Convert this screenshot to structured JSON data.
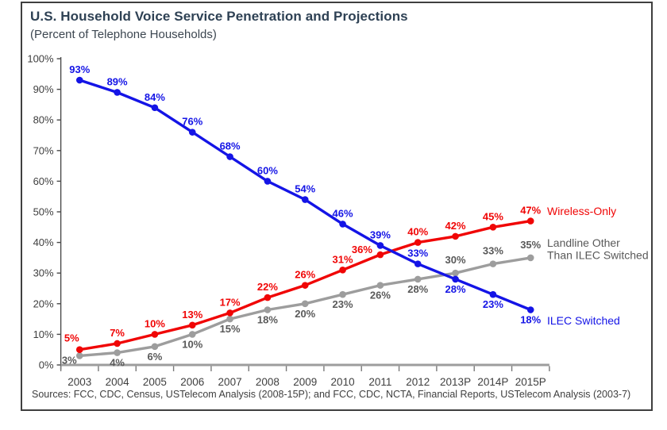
{
  "header": {
    "title": "U.S. Household Voice Service Penetration and Projections",
    "subtitle": "(Percent of Telephone Households)"
  },
  "source_note": "Sources: FCC, CDC, Census, USTelecom Analysis (2008-15P); and FCC, CDC, NCTA, Financial Reports, USTelecom Analysis (2003-7)",
  "colors": {
    "title": "#2e4154",
    "subtitle": "#3c4650",
    "axis_text": "#3f3f3f",
    "frame_border": "#3f3f3f",
    "wireless_red": "#f00505",
    "landline_gray_line": "#9d9d9d",
    "landline_gray_label": "#595959",
    "ilec_blue": "#1414e6"
  },
  "chart_data": {
    "type": "line",
    "title": "U.S. Household Voice Service Penetration and Projections",
    "subtitle": "(Percent of Telephone Households)",
    "categories": [
      "2003",
      "2004",
      "2005",
      "2006",
      "2007",
      "2008",
      "2009",
      "2010",
      "2011",
      "2012",
      "2013P",
      "2014P",
      "2015P"
    ],
    "ylim": [
      0,
      100
    ],
    "ytick_step": 10,
    "ytick_labels": [
      "0%",
      "10%",
      "20%",
      "30%",
      "40%",
      "50%",
      "60%",
      "70%",
      "80%",
      "90%",
      "100%"
    ],
    "grid": false,
    "markers": "circle",
    "data_label_suffix": "%",
    "legend_position": "right-of-last-point",
    "series": [
      {
        "key": "wireless-only",
        "name": "Wireless-Only",
        "legend_lines": [
          "Wireless-Only"
        ],
        "color": "#f00505",
        "label_color": "#f00505",
        "values": [
          5,
          7,
          10,
          13,
          17,
          22,
          26,
          31,
          36,
          40,
          42,
          45,
          47
        ]
      },
      {
        "key": "landline-other",
        "name": "Landline Other Than ILEC Switched",
        "legend_lines": [
          "Landline Other",
          "Than ILEC Switched"
        ],
        "color": "#9d9d9d",
        "label_color": "#595959",
        "values": [
          3,
          4,
          6,
          10,
          15,
          18,
          20,
          23,
          26,
          28,
          30,
          33,
          35
        ]
      },
      {
        "key": "ilec-switched",
        "name": "ILEC Switched",
        "legend_lines": [
          "ILEC Switched"
        ],
        "color": "#1414e6",
        "label_color": "#1414e6",
        "values": [
          93,
          89,
          84,
          76,
          68,
          60,
          54,
          46,
          39,
          33,
          28,
          23,
          18
        ]
      }
    ]
  }
}
